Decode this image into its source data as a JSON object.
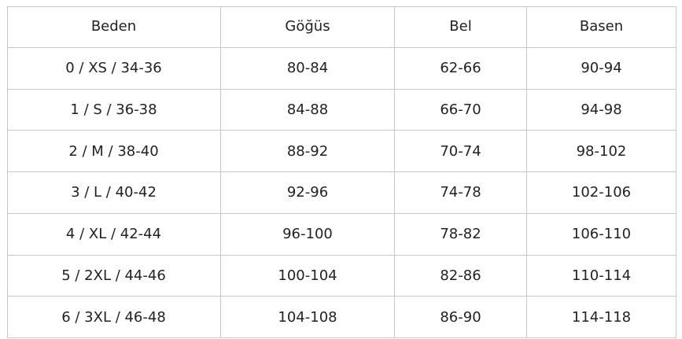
{
  "table": {
    "header": [
      "Beden",
      "Göğüs",
      "Bel",
      "Basen"
    ],
    "rows": [
      [
        "0 / XS / 34-36",
        "80-84",
        "62-66",
        "90-94"
      ],
      [
        "1 / S / 36-38",
        "84-88",
        "66-70",
        "94-98"
      ],
      [
        "2 / M / 38-40",
        "88-92",
        "70-74",
        "98-102"
      ],
      [
        "3 / L / 40-42",
        "92-96",
        "74-78",
        "102-106"
      ],
      [
        "4 / XL / 42-44",
        "96-100",
        "78-82",
        "106-110"
      ],
      [
        "5 / 2XL / 44-46",
        "100-104",
        "82-86",
        "110-114"
      ],
      [
        "6 / 3XL / 46-48",
        "104-108",
        "86-90",
        "114-118"
      ]
    ]
  }
}
